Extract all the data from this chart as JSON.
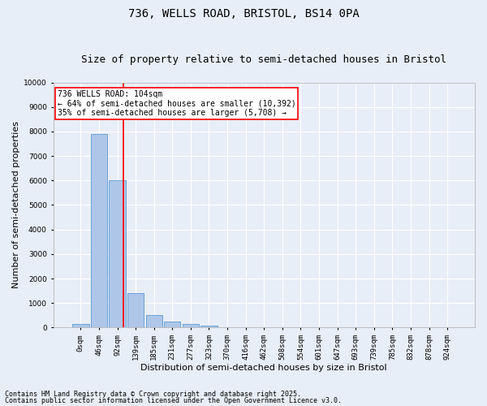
{
  "title1": "736, WELLS ROAD, BRISTOL, BS14 0PA",
  "title2": "Size of property relative to semi-detached houses in Bristol",
  "xlabel": "Distribution of semi-detached houses by size in Bristol",
  "ylabel": "Number of semi-detached properties",
  "bar_labels": [
    "0sqm",
    "46sqm",
    "92sqm",
    "139sqm",
    "185sqm",
    "231sqm",
    "277sqm",
    "323sqm",
    "370sqm",
    "416sqm",
    "462sqm",
    "508sqm",
    "554sqm",
    "601sqm",
    "647sqm",
    "693sqm",
    "739sqm",
    "785sqm",
    "832sqm",
    "878sqm",
    "924sqm"
  ],
  "bar_values": [
    150,
    7900,
    6000,
    1400,
    500,
    230,
    150,
    80,
    20,
    0,
    0,
    0,
    0,
    0,
    0,
    0,
    0,
    0,
    0,
    0,
    0
  ],
  "bar_color": "#aec6e8",
  "bar_edge_color": "#5b9bd5",
  "vline_x": 2.35,
  "vline_color": "red",
  "annotation_title": "736 WELLS ROAD: 104sqm",
  "annotation_line1": "← 64% of semi-detached houses are smaller (10,392)",
  "annotation_line2": "35% of semi-detached houses are larger (5,708) →",
  "annotation_box_color": "white",
  "annotation_box_edge": "red",
  "ylim": [
    0,
    10000
  ],
  "yticks": [
    0,
    1000,
    2000,
    3000,
    4000,
    5000,
    6000,
    7000,
    8000,
    9000,
    10000
  ],
  "footnote1": "Contains HM Land Registry data © Crown copyright and database right 2025.",
  "footnote2": "Contains public sector information licensed under the Open Government Licence v3.0.",
  "bg_color": "#e8eef7",
  "plot_bg_color": "#e8eef7",
  "grid_color": "white",
  "title1_fontsize": 10,
  "title2_fontsize": 9,
  "xlabel_fontsize": 8,
  "ylabel_fontsize": 8,
  "tick_fontsize": 6.5,
  "annotation_fontsize": 7,
  "footnote_fontsize": 6
}
